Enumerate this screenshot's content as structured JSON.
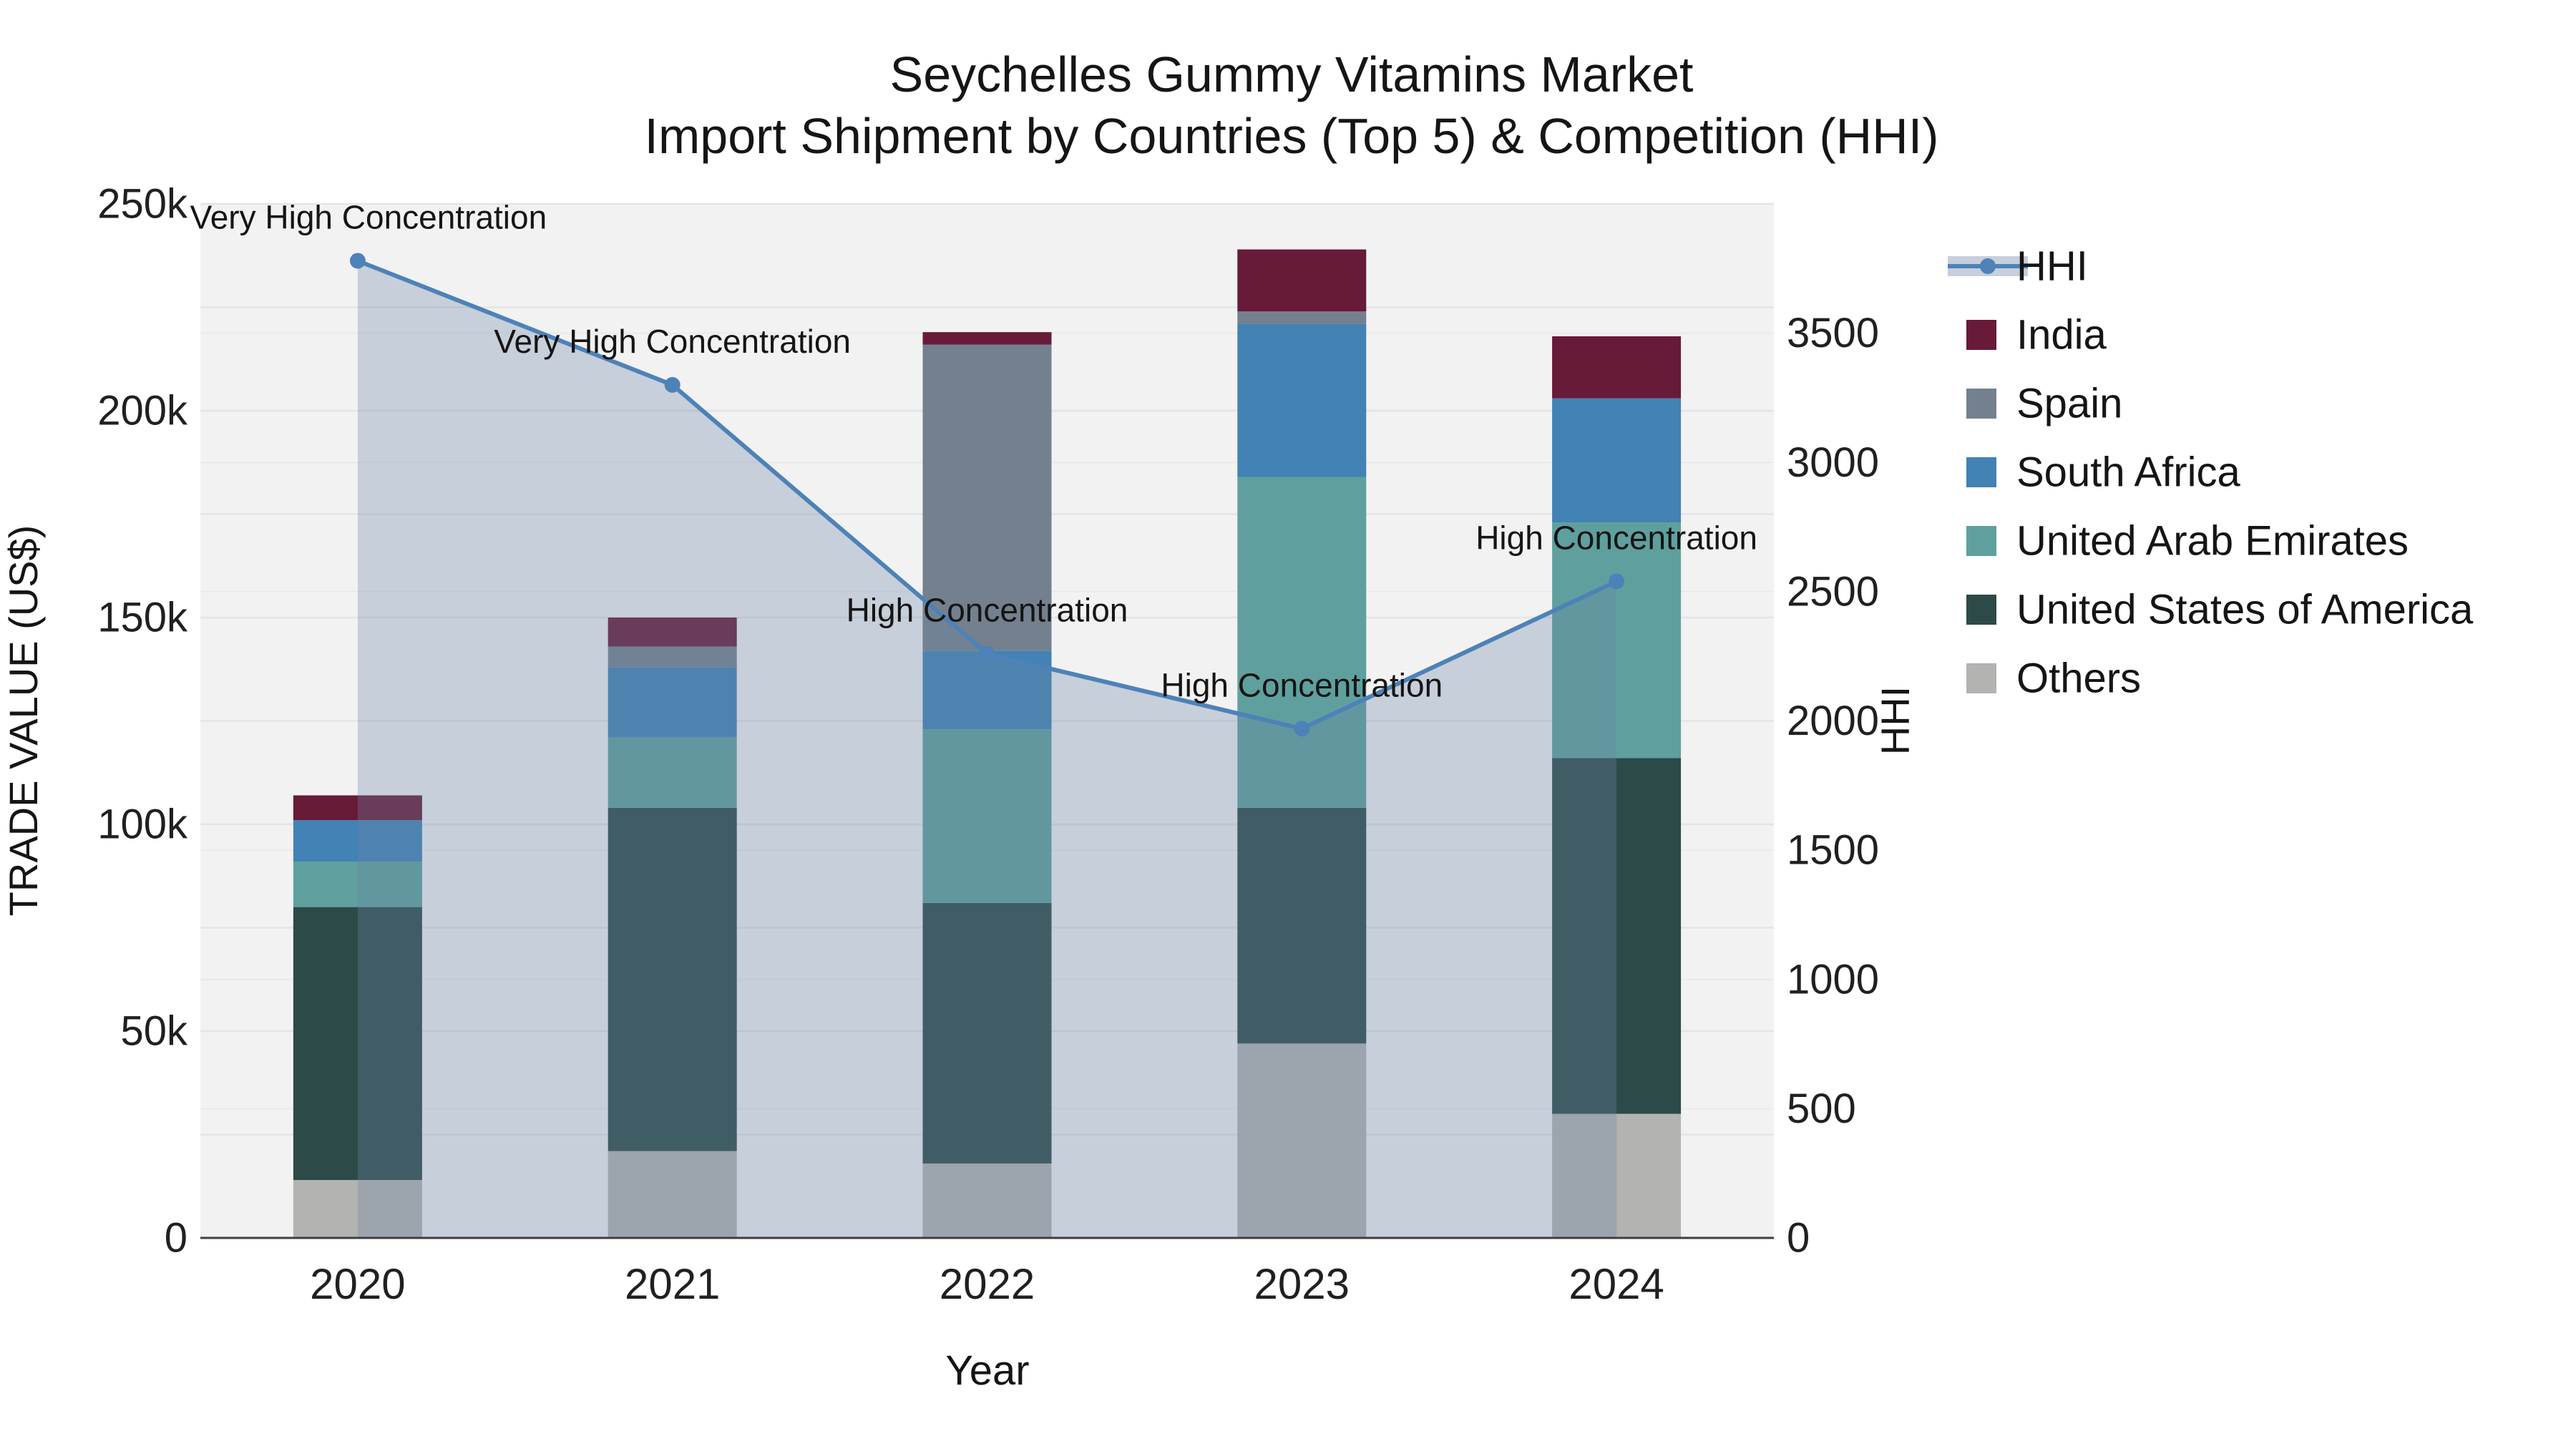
{
  "title": {
    "line1": "Seychelles Gummy Vitamins Market",
    "line2": "Import Shipment by Countries (Top 5) & Competition (HHI)"
  },
  "x_axis": {
    "title": "Year",
    "tick_labels": [
      "2020",
      "2021",
      "2022",
      "2023",
      "2024"
    ]
  },
  "y_left": {
    "title": "TRADE VALUE (US$)",
    "tick_labels": [
      "0",
      "50k",
      "100k",
      "150k",
      "200k",
      "250k"
    ]
  },
  "y_right": {
    "title": "HHI",
    "tick_labels": [
      "0",
      "500",
      "1000",
      "1500",
      "2000",
      "2500",
      "3000",
      "3500"
    ]
  },
  "legend": {
    "items": [
      {
        "label": "HHI",
        "type": "line",
        "color_key": "hhi_line"
      },
      {
        "label": "India",
        "type": "swatch",
        "color_key": "india"
      },
      {
        "label": "Spain",
        "type": "swatch",
        "color_key": "spain"
      },
      {
        "label": "South Africa",
        "type": "swatch",
        "color_key": "south_africa"
      },
      {
        "label": "United Arab Emirates",
        "type": "swatch",
        "color_key": "uae"
      },
      {
        "label": "United States of America",
        "type": "swatch",
        "color_key": "usa"
      },
      {
        "label": "Others",
        "type": "swatch",
        "color_key": "others"
      }
    ]
  },
  "colors": {
    "india": "#681a39",
    "spain": "#74808e",
    "south_africa": "#4282b4",
    "uae": "#5fa09e",
    "usa": "#2c4a48",
    "others": "#b3b3b1",
    "hhi_line": "#4d82b8",
    "area_fill": "rgba(109,133,164,0.32)",
    "legend_band": "#c6cfdb",
    "plot_bg": "#f2f2f3",
    "grid_left": "#e4e4e7",
    "grid_right": "#eaeaed",
    "axis_line": "#3f3f3f",
    "text": "#151515"
  },
  "chart_data": {
    "type": "bar+line",
    "title": "Seychelles Gummy Vitamins Market — Import Shipment by Countries (Top 5) & Competition (HHI)",
    "categories": [
      "2020",
      "2021",
      "2022",
      "2023",
      "2024"
    ],
    "xlabel": "Year",
    "ylabel_left": "TRADE VALUE (US$)",
    "ylabel_right": "HHI",
    "y_left_range": [
      0,
      250000
    ],
    "y_right_range": [
      0,
      4000
    ],
    "grid": "on",
    "legend_position": "right",
    "stack_series_bottom_to_top": [
      {
        "name": "Others",
        "color_key": "others",
        "values": [
          14000,
          21000,
          18000,
          47000,
          30000
        ]
      },
      {
        "name": "United States of America",
        "color_key": "usa",
        "values": [
          66000,
          83000,
          63000,
          57000,
          86000
        ]
      },
      {
        "name": "United Arab Emirates",
        "color_key": "uae",
        "values": [
          11000,
          17000,
          42000,
          80000,
          57000
        ]
      },
      {
        "name": "South Africa",
        "color_key": "south_africa",
        "values": [
          10000,
          17000,
          19000,
          37000,
          30000
        ]
      },
      {
        "name": "Spain",
        "color_key": "spain",
        "values": [
          0,
          5000,
          74000,
          3000,
          0
        ]
      },
      {
        "name": "India",
        "color_key": "india",
        "values": [
          6000,
          7000,
          3000,
          15000,
          15000
        ]
      }
    ],
    "bar_totals": [
      107000,
      150000,
      219000,
      239000,
      218000
    ],
    "line_series": {
      "name": "HHI",
      "axis": "right",
      "values": [
        3780,
        3300,
        2260,
        1970,
        2540
      ],
      "point_annotations": [
        "Very High Concentration",
        "Very High Concentration",
        "High Concentration",
        "High Concentration",
        "High Concentration"
      ]
    }
  }
}
